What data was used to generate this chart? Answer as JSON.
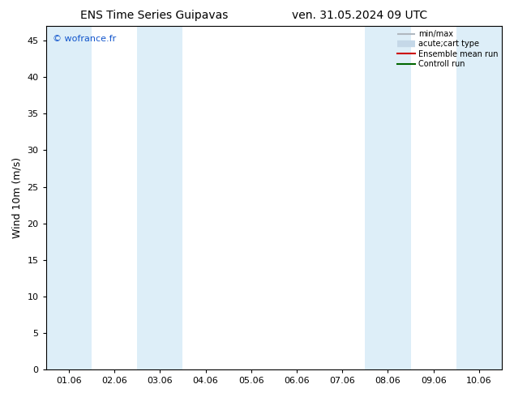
{
  "title_left": "ENS Time Series Guipavas",
  "title_right": "ven. 31.05.2024 09 UTC",
  "ylabel": "Wind 10m (m/s)",
  "watermark": "© wofrance.fr",
  "xtick_labels": [
    "01.06",
    "02.06",
    "03.06",
    "04.06",
    "05.06",
    "06.06",
    "07.06",
    "08.06",
    "09.06",
    "10.06"
  ],
  "xtick_positions": [
    0,
    1,
    2,
    3,
    4,
    5,
    6,
    7,
    8,
    9
  ],
  "ylim": [
    0,
    47
  ],
  "yticks": [
    0,
    5,
    10,
    15,
    20,
    25,
    30,
    35,
    40,
    45
  ],
  "xlim": [
    -0.5,
    9.5
  ],
  "shaded_bands": [
    {
      "xstart": -0.5,
      "xend": 0.5,
      "color": "#ddeef8"
    },
    {
      "xstart": 1.5,
      "xend": 2.5,
      "color": "#ddeef8"
    },
    {
      "xstart": 6.5,
      "xend": 7.5,
      "color": "#ddeef8"
    },
    {
      "xstart": 8.5,
      "xend": 9.5,
      "color": "#ddeef8"
    }
  ],
  "legend_entries": [
    {
      "label": "min/max",
      "color": "#b0b8c0",
      "lw": 1.5
    },
    {
      "label": "acute;cart type",
      "color": "#c5d8e8",
      "lw": 6
    },
    {
      "label": "Ensemble mean run",
      "color": "#cc0000",
      "lw": 1.5
    },
    {
      "label": "Controll run",
      "color": "#006600",
      "lw": 1.5
    }
  ],
  "bg_color": "#ffffff",
  "plot_bg_color": "#ffffff",
  "watermark_color": "#1155cc",
  "title_fontsize": 10,
  "ylabel_fontsize": 9,
  "tick_fontsize": 8,
  "legend_fontsize": 7,
  "watermark_fontsize": 8
}
